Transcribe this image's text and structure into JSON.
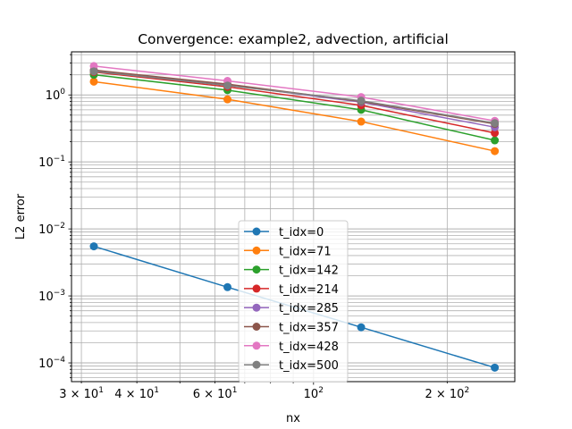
{
  "chart_data": {
    "type": "line",
    "title": "Convergence: example2, advection, artificial",
    "xlabel": "nx",
    "ylabel": "L2 error",
    "x_scale": "log",
    "y_scale": "log",
    "xlim": [
      28.5,
      284
    ],
    "ylim": [
      5.25e-05,
      4.4
    ],
    "grid": true,
    "grid_minor": true,
    "legend_position": "lower center",
    "x": [
      32,
      64,
      128,
      256
    ],
    "x_ticks": [
      {
        "value": 30,
        "base": "3 × 10",
        "exp": "1"
      },
      {
        "value": 40,
        "base": "4 × 10",
        "exp": "1"
      },
      {
        "value": 60,
        "base": "6 × 10",
        "exp": "1"
      },
      {
        "value": 100,
        "base": "10",
        "exp": "2"
      },
      {
        "value": 200,
        "base": "2 × 10",
        "exp": "2"
      }
    ],
    "y_ticks": [
      {
        "value": 0.0001,
        "base": "10",
        "exp": "−4"
      },
      {
        "value": 0.001,
        "base": "10",
        "exp": "−3"
      },
      {
        "value": 0.01,
        "base": "10",
        "exp": "−2"
      },
      {
        "value": 0.1,
        "base": "10",
        "exp": "−1"
      },
      {
        "value": 1,
        "base": "10",
        "exp": "0"
      }
    ],
    "series": [
      {
        "name": "t_idx=0",
        "color": "#1f77b4",
        "values": [
          0.0055,
          0.00135,
          0.00034,
          8.5e-05
        ]
      },
      {
        "name": "t_idx=71",
        "color": "#ff7f0e",
        "values": [
          1.58,
          0.86,
          0.4,
          0.145
        ]
      },
      {
        "name": "t_idx=142",
        "color": "#2ca02c",
        "values": [
          2.0,
          1.18,
          0.6,
          0.21
        ]
      },
      {
        "name": "t_idx=214",
        "color": "#d62728",
        "values": [
          2.2,
          1.32,
          0.7,
          0.27
        ]
      },
      {
        "name": "t_idx=285",
        "color": "#9467bd",
        "values": [
          2.3,
          1.42,
          0.78,
          0.33
        ]
      },
      {
        "name": "t_idx=357",
        "color": "#8c564b",
        "values": [
          2.35,
          1.45,
          0.8,
          0.37
        ]
      },
      {
        "name": "t_idx=428",
        "color": "#e377c2",
        "values": [
          2.7,
          1.62,
          0.93,
          0.41
        ]
      },
      {
        "name": "t_idx=500",
        "color": "#7f7f7f",
        "values": [
          2.25,
          1.38,
          0.82,
          0.38
        ]
      }
    ]
  }
}
